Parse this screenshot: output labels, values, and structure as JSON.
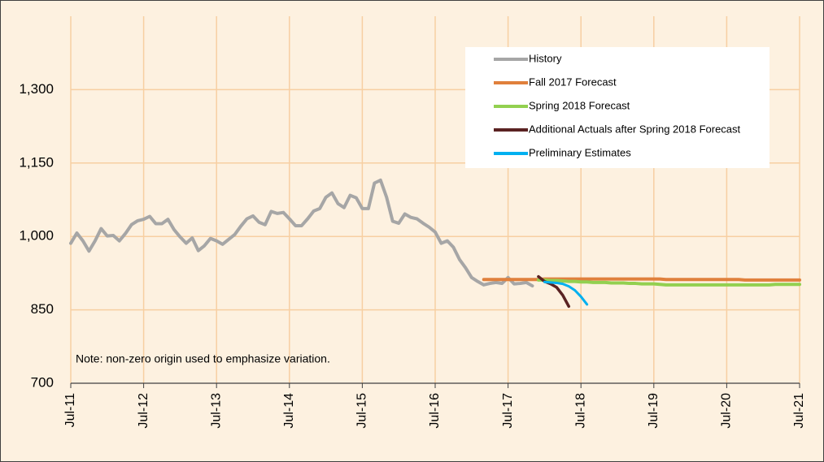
{
  "chart_data": {
    "type": "line",
    "annotation": "Note: non-zero origin used to emphasize variation.",
    "categories": [
      "Jul-11",
      null,
      null,
      null,
      null,
      null,
      null,
      null,
      null,
      null,
      null,
      null,
      "Jul-12",
      null,
      null,
      null,
      null,
      null,
      null,
      null,
      null,
      null,
      null,
      null,
      "Jul-13",
      null,
      null,
      null,
      null,
      null,
      null,
      null,
      null,
      null,
      null,
      null,
      "Jul-14",
      null,
      null,
      null,
      null,
      null,
      null,
      null,
      null,
      null,
      null,
      null,
      "Jul-15",
      null,
      null,
      null,
      null,
      null,
      null,
      null,
      null,
      null,
      null,
      null,
      "Jul-16",
      null,
      null,
      null,
      null,
      null,
      null,
      null,
      null,
      null,
      null,
      null,
      "Jul-17",
      null,
      null,
      null,
      null,
      null,
      null,
      null,
      null,
      null,
      null,
      null,
      "Jul-18",
      null,
      null,
      null,
      null,
      null,
      null,
      null,
      null,
      null,
      null,
      null,
      "Jul-19",
      null,
      null,
      null,
      null,
      null,
      null,
      null,
      null,
      null,
      null,
      null,
      "Jul-20",
      null,
      null,
      null,
      null,
      null,
      null,
      null,
      null,
      null,
      null,
      null,
      "Jul-21"
    ],
    "series": [
      {
        "name": "History",
        "color": "#a6a6a6",
        "width": 4,
        "values": [
          986,
          1007,
          991,
          970,
          991,
          1016,
          1001,
          1002,
          991,
          1006,
          1024,
          1032,
          1035,
          1041,
          1026,
          1026,
          1035,
          1014,
          999,
          986,
          997,
          971,
          981,
          996,
          991,
          984,
          994,
          1004,
          1021,
          1036,
          1042,
          1029,
          1024,
          1051,
          1047,
          1049,
          1036,
          1022,
          1022,
          1036,
          1052,
          1057,
          1080,
          1089,
          1067,
          1059,
          1084,
          1079,
          1057,
          1057,
          1109,
          1115,
          1080,
          1031,
          1027,
          1046,
          1039,
          1036,
          1027,
          1019,
          1009,
          986,
          991,
          978,
          953,
          936,
          916,
          908,
          901,
          904,
          906,
          904,
          916,
          903,
          904,
          906,
          899,
          null,
          null,
          null,
          null,
          null,
          null,
          null,
          null,
          null,
          null,
          null,
          null,
          null,
          null,
          null,
          null,
          null,
          null,
          null,
          null,
          null,
          null,
          null,
          null,
          null,
          null,
          null,
          null,
          null,
          null,
          null,
          null,
          null,
          null,
          null,
          null,
          null,
          null,
          null,
          null,
          null,
          null,
          null,
          null
        ]
      },
      {
        "name": "Fall 2017 Forecast",
        "color": "#e0803c",
        "width": 4,
        "values": [
          null,
          null,
          null,
          null,
          null,
          null,
          null,
          null,
          null,
          null,
          null,
          null,
          null,
          null,
          null,
          null,
          null,
          null,
          null,
          null,
          null,
          null,
          null,
          null,
          null,
          null,
          null,
          null,
          null,
          null,
          null,
          null,
          null,
          null,
          null,
          null,
          null,
          null,
          null,
          null,
          null,
          null,
          null,
          null,
          null,
          null,
          null,
          null,
          null,
          null,
          null,
          null,
          null,
          null,
          null,
          null,
          null,
          null,
          null,
          null,
          null,
          null,
          null,
          null,
          null,
          null,
          null,
          null,
          912,
          912,
          912,
          912,
          912,
          912,
          912,
          912,
          912,
          912,
          913,
          913,
          913,
          913,
          913,
          913,
          913,
          913,
          913,
          913,
          913,
          913,
          913,
          913,
          913,
          913,
          913,
          913,
          913,
          913,
          912,
          912,
          912,
          912,
          912,
          912,
          912,
          912,
          912,
          912,
          912,
          912,
          912,
          911,
          911,
          911,
          911,
          911,
          911,
          911,
          911,
          911,
          911
        ]
      },
      {
        "name": "Spring 2018 Forecast",
        "color": "#92d050",
        "width": 4,
        "values": [
          null,
          null,
          null,
          null,
          null,
          null,
          null,
          null,
          null,
          null,
          null,
          null,
          null,
          null,
          null,
          null,
          null,
          null,
          null,
          null,
          null,
          null,
          null,
          null,
          null,
          null,
          null,
          null,
          null,
          null,
          null,
          null,
          null,
          null,
          null,
          null,
          null,
          null,
          null,
          null,
          null,
          null,
          null,
          null,
          null,
          null,
          null,
          null,
          null,
          null,
          null,
          null,
          null,
          null,
          null,
          null,
          null,
          null,
          null,
          null,
          null,
          null,
          null,
          null,
          null,
          null,
          null,
          null,
          null,
          null,
          null,
          null,
          null,
          null,
          null,
          null,
          null,
          911,
          911,
          910,
          910,
          909,
          908,
          908,
          907,
          907,
          906,
          906,
          906,
          905,
          905,
          905,
          904,
          904,
          903,
          903,
          903,
          902,
          901,
          901,
          901,
          901,
          901,
          901,
          901,
          901,
          901,
          901,
          901,
          901,
          901,
          901,
          901,
          901,
          901,
          901,
          902,
          902,
          902,
          902,
          902
        ]
      },
      {
        "name": "Additional Actuals after Spring 2018 Forecast",
        "color": "#5a2222",
        "width": 3.5,
        "values": [
          null,
          null,
          null,
          null,
          null,
          null,
          null,
          null,
          null,
          null,
          null,
          null,
          null,
          null,
          null,
          null,
          null,
          null,
          null,
          null,
          null,
          null,
          null,
          null,
          null,
          null,
          null,
          null,
          null,
          null,
          null,
          null,
          null,
          null,
          null,
          null,
          null,
          null,
          null,
          null,
          null,
          null,
          null,
          null,
          null,
          null,
          null,
          null,
          null,
          null,
          null,
          null,
          null,
          null,
          null,
          null,
          null,
          null,
          null,
          null,
          null,
          null,
          null,
          null,
          null,
          null,
          null,
          null,
          null,
          null,
          null,
          null,
          null,
          null,
          null,
          null,
          null,
          918,
          908,
          903,
          896,
          880,
          857,
          null,
          null,
          null,
          null,
          null,
          null,
          null,
          null,
          null,
          null,
          null,
          null,
          null,
          null,
          null,
          null,
          null,
          null,
          null,
          null,
          null,
          null,
          null,
          null,
          null,
          null,
          null,
          null,
          null,
          null,
          null,
          null,
          null,
          null,
          null,
          null,
          null,
          null
        ]
      },
      {
        "name": "Preliminary Estimates",
        "color": "#00b0f0",
        "width": 3,
        "values": [
          null,
          null,
          null,
          null,
          null,
          null,
          null,
          null,
          null,
          null,
          null,
          null,
          null,
          null,
          null,
          null,
          null,
          null,
          null,
          null,
          null,
          null,
          null,
          null,
          null,
          null,
          null,
          null,
          null,
          null,
          null,
          null,
          null,
          null,
          null,
          null,
          null,
          null,
          null,
          null,
          null,
          null,
          null,
          null,
          null,
          null,
          null,
          null,
          null,
          null,
          null,
          null,
          null,
          null,
          null,
          null,
          null,
          null,
          null,
          null,
          null,
          null,
          null,
          null,
          null,
          null,
          null,
          null,
          null,
          null,
          null,
          null,
          null,
          null,
          null,
          null,
          null,
          null,
          907,
          906,
          905,
          903,
          898,
          890,
          877,
          861,
          null,
          null,
          null,
          null,
          null,
          null,
          null,
          null,
          null,
          null,
          null,
          null,
          null,
          null,
          null,
          null,
          null,
          null,
          null,
          null,
          null,
          null,
          null,
          null,
          null,
          null,
          null,
          null,
          null,
          null,
          null,
          null,
          null,
          null,
          null
        ]
      }
    ],
    "ylim": [
      700,
      1450
    ],
    "yticks": [
      700,
      850,
      {
        "value": 1000,
        "label": "1,000"
      },
      {
        "value": 1150,
        "label": "1,150"
      },
      {
        "value": 1300,
        "label": "1,300"
      }
    ],
    "grid": true,
    "legend": "upper right"
  }
}
